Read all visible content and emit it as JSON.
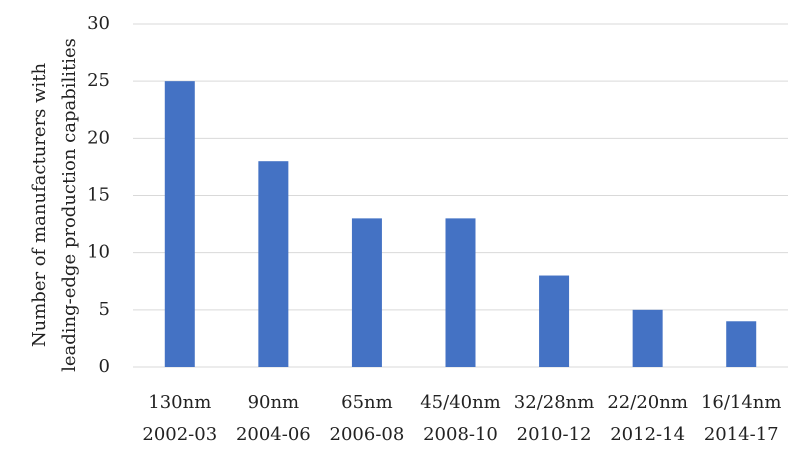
{
  "chart_data": {
    "type": "bar",
    "ylabel": [
      "Number of manufacturers with",
      "leading-edge production capabilities"
    ],
    "categories": [
      [
        "130nm",
        "2002-03"
      ],
      [
        "90nm",
        "2004-06"
      ],
      [
        "65nm",
        "2006-08"
      ],
      [
        "45/40nm",
        "2008-10"
      ],
      [
        "32/28nm",
        "2010-12"
      ],
      [
        "22/20nm",
        "2012-14"
      ],
      [
        "16/14nm",
        "2014-17"
      ]
    ],
    "values": [
      25,
      18,
      13,
      13,
      8,
      5,
      4
    ],
    "color": "#4472c4",
    "ylim": [
      0,
      30
    ],
    "yticks": [
      0,
      5,
      10,
      15,
      20,
      25,
      30
    ],
    "grid": true
  }
}
